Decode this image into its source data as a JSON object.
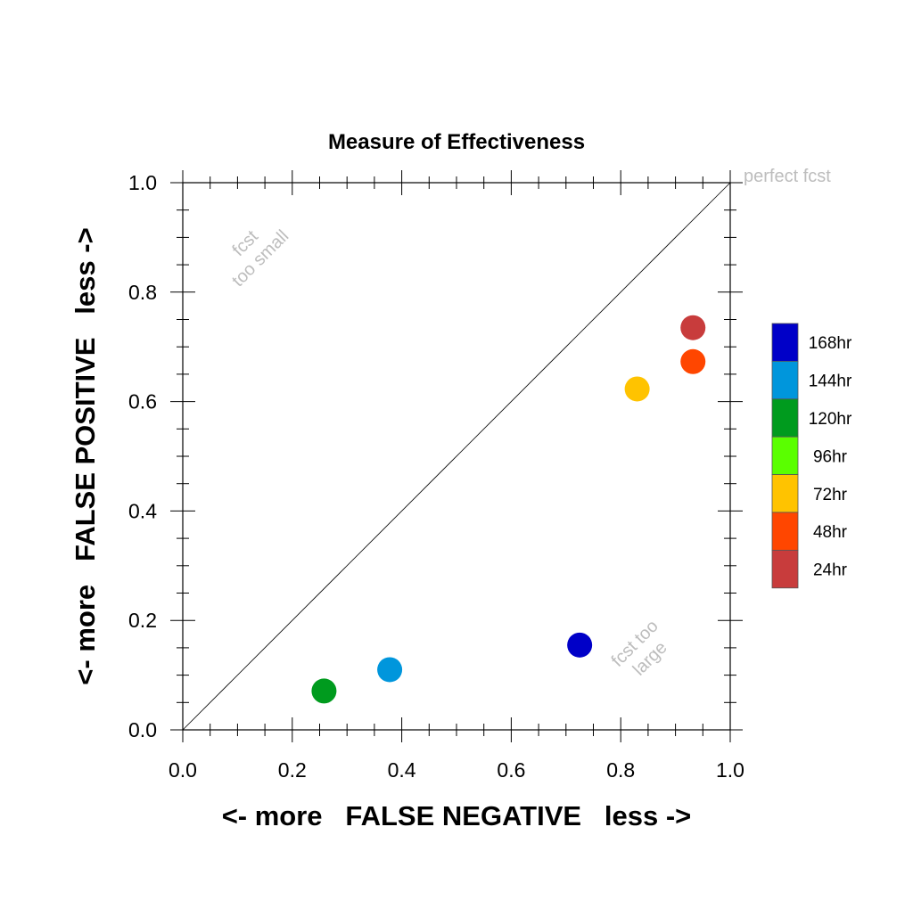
{
  "chart_data": {
    "type": "scatter",
    "title": "Measure of Effectiveness",
    "xlabel": "<- more   FALSE NEGATIVE   less ->",
    "ylabel": "<- more   FALSE POSITIVE   less ->",
    "xlim": [
      0.0,
      1.0
    ],
    "ylim": [
      0.0,
      1.0
    ],
    "xticks": [
      "0.0",
      "0.2",
      "0.4",
      "0.6",
      "0.8",
      "1.0"
    ],
    "yticks": [
      "0.0",
      "0.2",
      "0.4",
      "0.6",
      "0.8",
      "1.0"
    ],
    "grid": false,
    "legend_position": "right",
    "diagonal_line": true,
    "annotations": {
      "perfect": "perfect fcst",
      "too_small": [
        "fcst",
        "too small"
      ],
      "too_large": [
        "fcst too",
        "large"
      ]
    },
    "series": [
      {
        "name": "168hr",
        "color": "#0000c8",
        "x": 0.725,
        "y": 0.155
      },
      {
        "name": "144hr",
        "color": "#0096dc",
        "x": 0.378,
        "y": 0.11
      },
      {
        "name": "120hr",
        "color": "#009b1e",
        "x": 0.258,
        "y": 0.071
      },
      {
        "name": "96hr",
        "color": "#5aff00",
        "x": null,
        "y": null
      },
      {
        "name": "72hr",
        "color": "#ffc300",
        "x": 0.83,
        "y": 0.623
      },
      {
        "name": "48hr",
        "color": "#ff4600",
        "x": 0.932,
        "y": 0.673
      },
      {
        "name": "24hr",
        "color": "#c83c3c",
        "x": 0.932,
        "y": 0.735
      }
    ]
  }
}
